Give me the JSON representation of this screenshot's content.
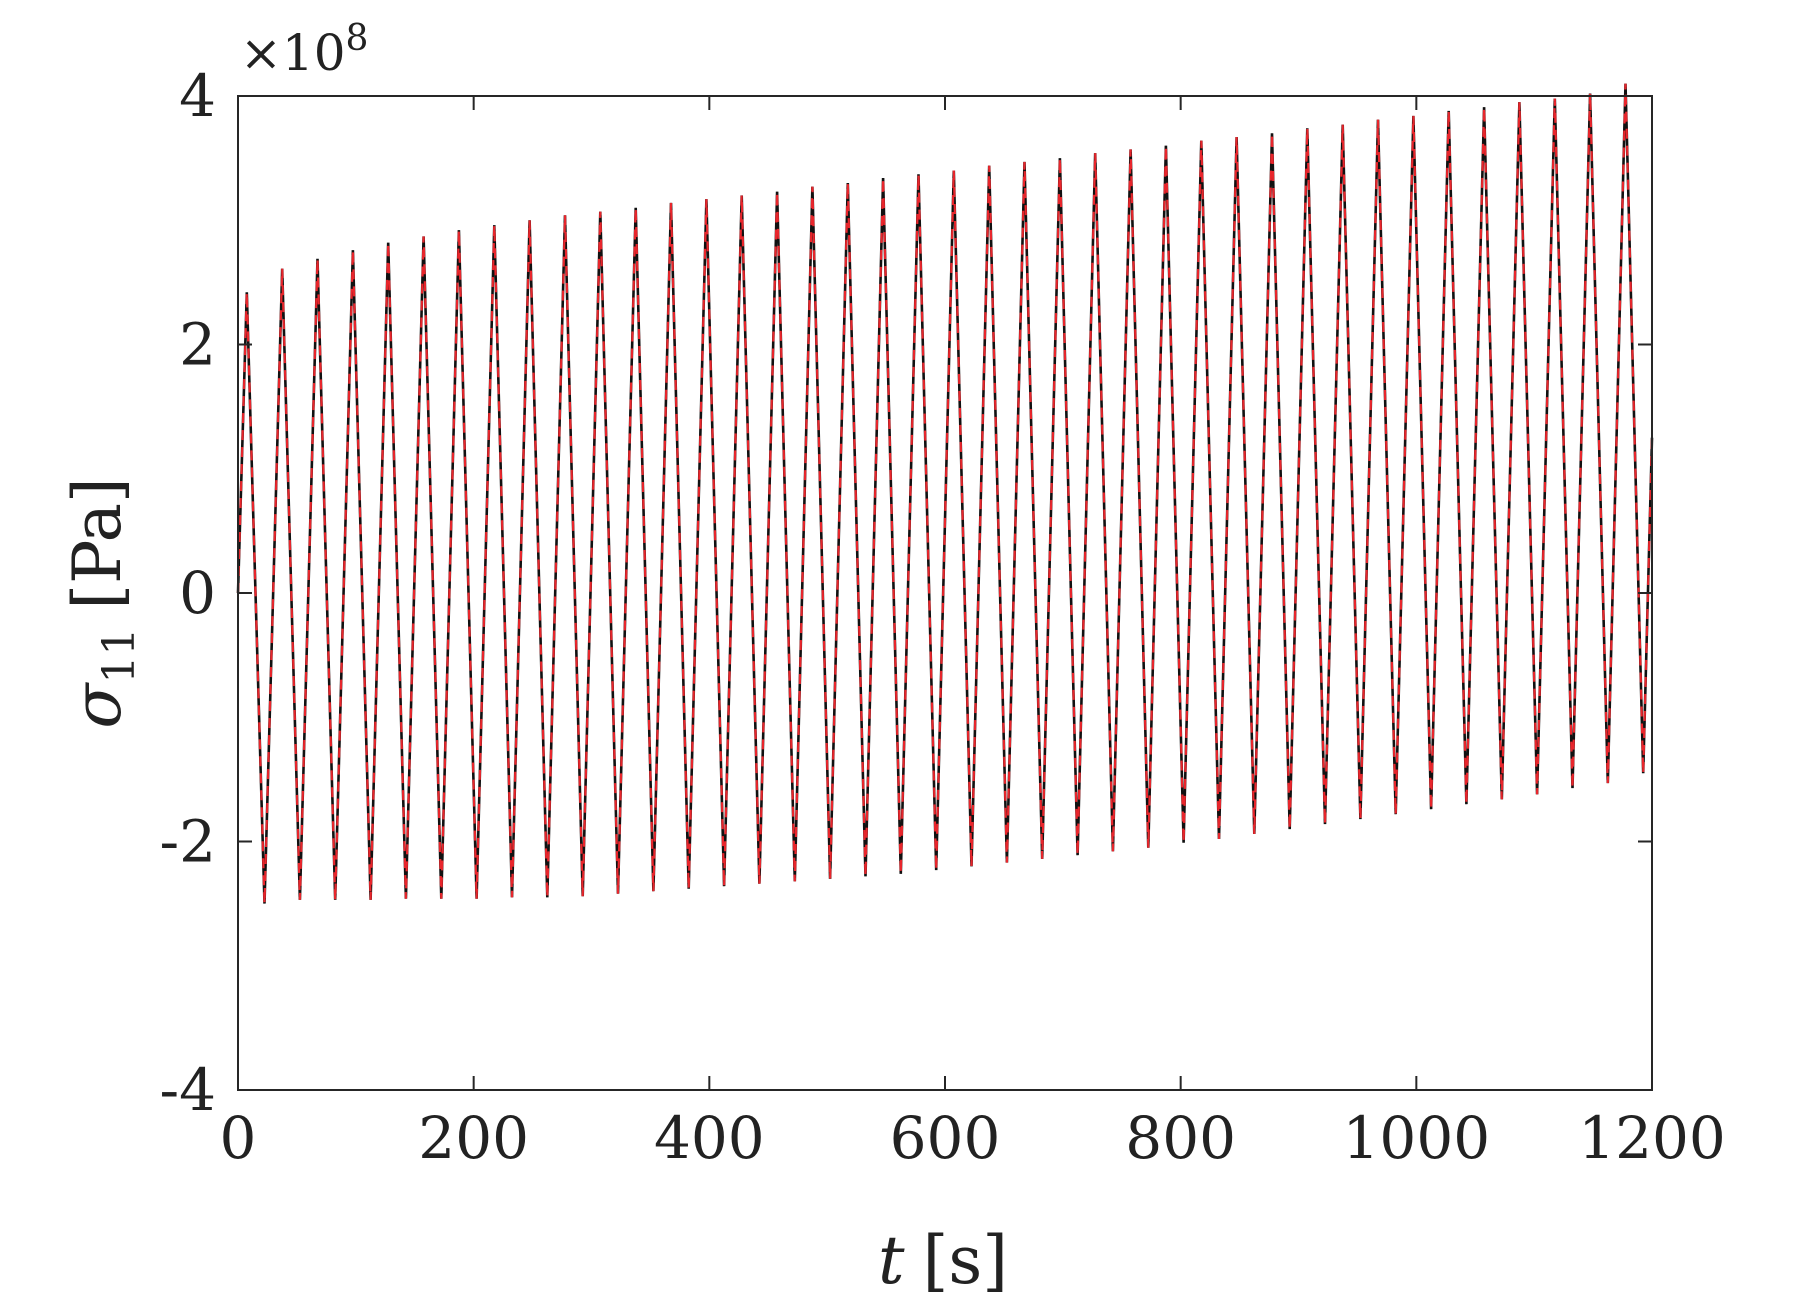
{
  "chart_data": {
    "type": "line",
    "title": "",
    "xlabel": {
      "var": "t",
      "unit": "[s]"
    },
    "ylabel": {
      "var": "σ",
      "sub": "11",
      "unit": "[Pa]"
    },
    "xlim": [
      0,
      1200
    ],
    "ylim": [
      -4,
      4
    ],
    "x_ticks": [
      0,
      200,
      400,
      600,
      800,
      1000,
      1200
    ],
    "y_ticks": [
      -4,
      -2,
      0,
      2,
      4
    ],
    "x_tick_labels": [
      "0",
      "200",
      "400",
      "600",
      "800",
      "1000",
      "1200"
    ],
    "y_tick_labels": [
      "-4",
      "-2",
      "0",
      "2",
      "4"
    ],
    "y_exponent": {
      "base": "×10",
      "power": "8"
    },
    "grid": false,
    "legend": "none",
    "signal": {
      "start": [
        0,
        0
      ],
      "peaks": [
        [
          7.5,
          2.42
        ],
        [
          37.5,
          2.61
        ],
        [
          67.5,
          2.69
        ],
        [
          97.5,
          2.76
        ],
        [
          127.5,
          2.82
        ],
        [
          157.5,
          2.87
        ],
        [
          187.5,
          2.92
        ],
        [
          217.5,
          2.96
        ],
        [
          247.5,
          3.0
        ],
        [
          277.5,
          3.04
        ],
        [
          307.5,
          3.07
        ],
        [
          337.5,
          3.1
        ],
        [
          367.5,
          3.14
        ],
        [
          397.5,
          3.17
        ],
        [
          427.5,
          3.2
        ],
        [
          457.5,
          3.23
        ],
        [
          487.5,
          3.27
        ],
        [
          517.5,
          3.3
        ],
        [
          547.5,
          3.34
        ],
        [
          577.5,
          3.37
        ],
        [
          607.5,
          3.4
        ],
        [
          637.5,
          3.44
        ],
        [
          667.5,
          3.47
        ],
        [
          697.5,
          3.5
        ],
        [
          727.5,
          3.54
        ],
        [
          757.5,
          3.57
        ],
        [
          787.5,
          3.6
        ],
        [
          817.5,
          3.64
        ],
        [
          847.5,
          3.67
        ],
        [
          877.5,
          3.7
        ],
        [
          907.5,
          3.74
        ],
        [
          937.5,
          3.77
        ],
        [
          967.5,
          3.81
        ],
        [
          997.5,
          3.84
        ],
        [
          1027.5,
          3.88
        ],
        [
          1057.5,
          3.91
        ],
        [
          1087.5,
          3.95
        ],
        [
          1117.5,
          3.98
        ],
        [
          1147.5,
          4.02
        ],
        [
          1177.5,
          4.1
        ]
      ],
      "troughs": [
        [
          22.5,
          -2.5
        ],
        [
          52.5,
          -2.47
        ],
        [
          82.5,
          -2.47
        ],
        [
          112.5,
          -2.47
        ],
        [
          142.5,
          -2.46
        ],
        [
          172.5,
          -2.46
        ],
        [
          202.5,
          -2.46
        ],
        [
          232.5,
          -2.45
        ],
        [
          262.5,
          -2.45
        ],
        [
          292.5,
          -2.44
        ],
        [
          322.5,
          -2.42
        ],
        [
          352.5,
          -2.4
        ],
        [
          382.5,
          -2.38
        ],
        [
          412.5,
          -2.36
        ],
        [
          442.5,
          -2.34
        ],
        [
          472.5,
          -2.32
        ],
        [
          502.5,
          -2.3
        ],
        [
          532.5,
          -2.28
        ],
        [
          562.5,
          -2.26
        ],
        [
          592.5,
          -2.23
        ],
        [
          622.5,
          -2.2
        ],
        [
          652.5,
          -2.17
        ],
        [
          682.5,
          -2.14
        ],
        [
          712.5,
          -2.11
        ],
        [
          742.5,
          -2.08
        ],
        [
          772.5,
          -2.05
        ],
        [
          802.5,
          -2.01
        ],
        [
          832.5,
          -1.98
        ],
        [
          862.5,
          -1.94
        ],
        [
          892.5,
          -1.9
        ],
        [
          922.5,
          -1.86
        ],
        [
          952.5,
          -1.82
        ],
        [
          982.5,
          -1.78
        ],
        [
          1012.5,
          -1.74
        ],
        [
          1042.5,
          -1.7
        ],
        [
          1072.5,
          -1.66
        ],
        [
          1102.5,
          -1.62
        ],
        [
          1132.5,
          -1.57
        ],
        [
          1162.5,
          -1.53
        ],
        [
          1192.5,
          -1.45
        ]
      ],
      "end": [
        1200,
        1.25
      ]
    },
    "series": [
      {
        "style": "solid",
        "color": "#111111"
      },
      {
        "style": "dashed",
        "color": "#e8262c"
      }
    ]
  }
}
